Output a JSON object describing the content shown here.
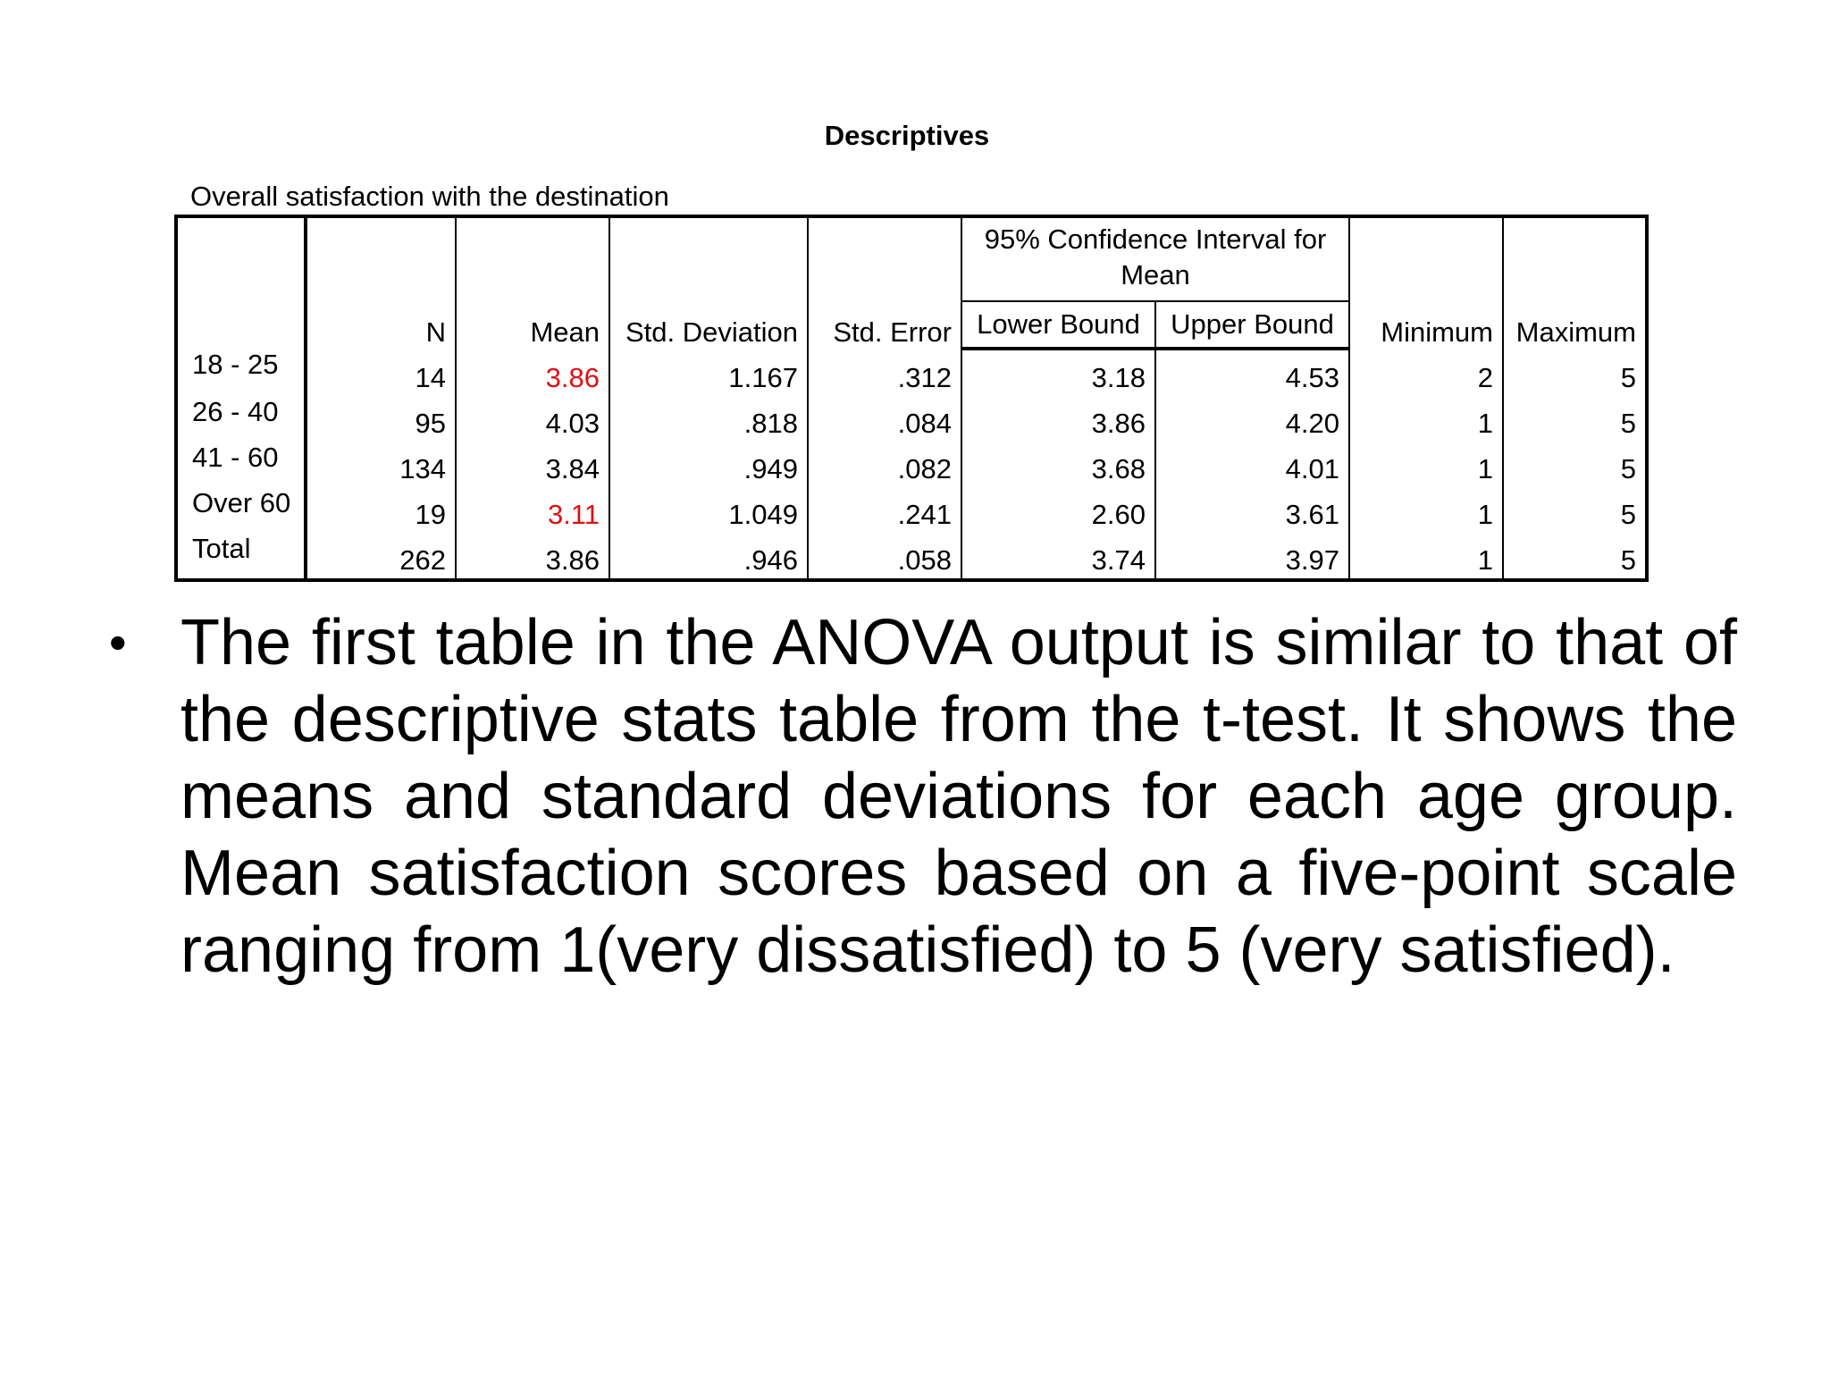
{
  "table": {
    "title": "Descriptives",
    "caption": "Overall satisfaction with the destination",
    "headers": {
      "n": "N",
      "mean": "Mean",
      "std_deviation": "Std. Deviation",
      "std_error": "Std. Error",
      "ci_group": "95% Confidence Interval for Mean",
      "lower_bound": "Lower Bound",
      "upper_bound": "Upper Bound",
      "minimum": "Minimum",
      "maximum": "Maximum"
    },
    "rows": [
      {
        "label": "18 - 25",
        "n": "14",
        "mean": "3.86",
        "sd": "1.167",
        "se": ".312",
        "lower": "3.18",
        "upper": "4.53",
        "min": "2",
        "max": "5"
      },
      {
        "label": "26 - 40",
        "n": "95",
        "mean": "4.03",
        "sd": ".818",
        "se": ".084",
        "lower": "3.86",
        "upper": "4.20",
        "min": "1",
        "max": "5"
      },
      {
        "label": "41 - 60",
        "n": "134",
        "mean": "3.84",
        "sd": ".949",
        "se": ".082",
        "lower": "3.68",
        "upper": "4.01",
        "min": "1",
        "max": "5"
      },
      {
        "label": "Over 60",
        "n": "19",
        "mean": "3.11",
        "sd": "1.049",
        "se": ".241",
        "lower": "2.60",
        "upper": "3.61",
        "min": "1",
        "max": "5"
      },
      {
        "label": "Total",
        "n": "262",
        "mean": "3.86",
        "sd": ".946",
        "se": ".058",
        "lower": "3.74",
        "upper": "3.97",
        "min": "1",
        "max": "5"
      }
    ],
    "highlight_color": "#e01010"
  },
  "bullet": {
    "symbol": "•",
    "text": "The first table in the ANOVA output is similar to that of the descriptive stats table from the t-test. It shows the means and standard deviations for each age group. Mean satisfaction scores based on a five-point scale ranging from 1(very dissatisfied) to 5 (very satisfied)."
  }
}
